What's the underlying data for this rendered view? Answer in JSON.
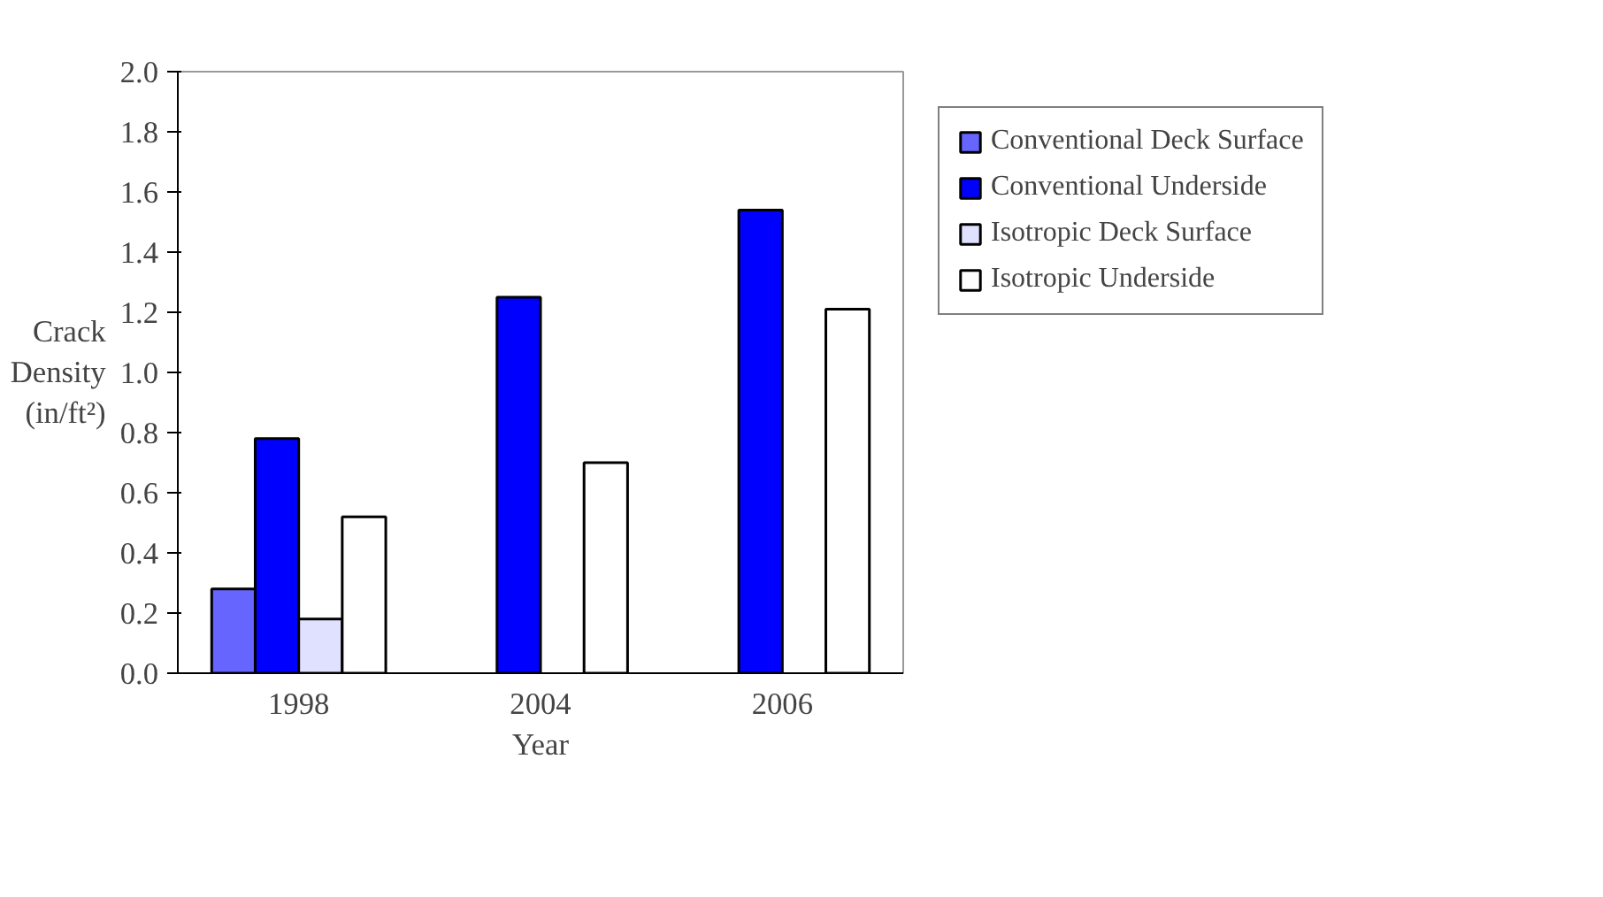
{
  "chart_data": {
    "type": "bar",
    "xlabel": "Year",
    "ylabel": "Crack Density (in/ft²)",
    "categories": [
      "1998",
      "2004",
      "2006"
    ],
    "series": [
      {
        "name": "Conventional Deck Surface",
        "color": "#6666ff",
        "values": [
          0.28,
          null,
          null
        ]
      },
      {
        "name": "Conventional Underside",
        "color": "#0000ff",
        "values": [
          0.78,
          1.25,
          1.54
        ]
      },
      {
        "name": "Isotropic Deck Surface",
        "color": "#e0e0ff",
        "values": [
          0.18,
          null,
          null
        ]
      },
      {
        "name": "Isotropic Underside",
        "color": "#ffffff",
        "values": [
          0.52,
          0.7,
          1.21
        ]
      }
    ],
    "ylim": [
      0,
      2.0
    ],
    "yticks": [
      {
        "value": 0,
        "label": "0.0"
      },
      {
        "value": 0.2,
        "label": "0.2"
      },
      {
        "value": 0.4,
        "label": "0.4"
      },
      {
        "value": 0.6,
        "label": "0.6"
      },
      {
        "value": 0.8,
        "label": "0.8"
      },
      {
        "value": 1.0,
        "label": "1.0"
      },
      {
        "value": 1.2,
        "label": "1.2"
      },
      {
        "value": 1.4,
        "label": "1.4"
      },
      {
        "value": 1.6,
        "label": "1.6"
      },
      {
        "value": 1.8,
        "label": "1.8"
      },
      {
        "value": 2.0,
        "label": "2.0"
      }
    ],
    "grid": false,
    "legend": "right"
  }
}
